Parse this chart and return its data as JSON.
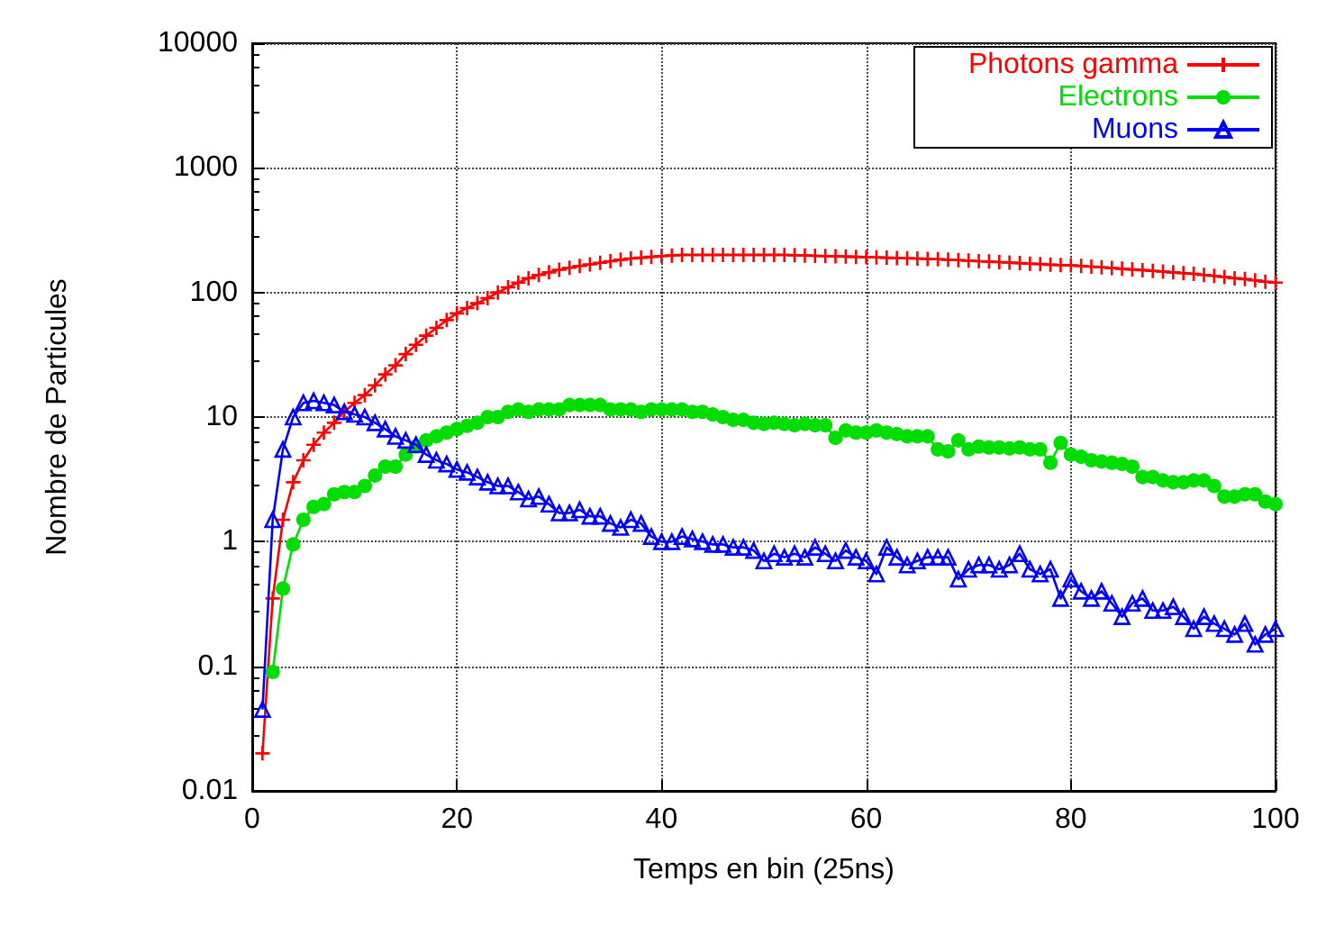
{
  "chart_data": {
    "type": "line",
    "xlabel": "Temps en bin (25ns)",
    "ylabel": "Nombre de Particules",
    "x": [
      1,
      2,
      3,
      4,
      5,
      6,
      7,
      8,
      9,
      10,
      11,
      12,
      13,
      14,
      15,
      16,
      17,
      18,
      19,
      20,
      21,
      22,
      23,
      24,
      25,
      26,
      27,
      28,
      29,
      30,
      31,
      32,
      33,
      34,
      35,
      36,
      37,
      38,
      39,
      40,
      41,
      42,
      43,
      44,
      45,
      46,
      47,
      48,
      49,
      50,
      51,
      52,
      53,
      54,
      55,
      56,
      57,
      58,
      59,
      60,
      61,
      62,
      63,
      64,
      65,
      66,
      67,
      68,
      69,
      70,
      71,
      72,
      73,
      74,
      75,
      76,
      77,
      78,
      79,
      80,
      81,
      82,
      83,
      84,
      85,
      86,
      87,
      88,
      89,
      90,
      91,
      92,
      93,
      94,
      95,
      96,
      97,
      98,
      99,
      100
    ],
    "series": [
      {
        "name": "Photons gamma",
        "color": "#ff0000",
        "marker": "cross",
        "values": [
          0.02,
          0.35,
          1.5,
          3,
          4.5,
          6,
          7.5,
          9,
          11,
          13,
          15,
          18,
          22,
          26,
          32,
          38,
          45,
          52,
          60,
          68,
          75,
          82,
          90,
          100,
          110,
          120,
          130,
          138,
          145,
          152,
          158,
          163,
          168,
          173,
          178,
          183,
          187,
          190,
          193,
          196,
          198,
          200,
          200,
          200,
          200,
          200,
          200,
          200,
          200,
          200,
          200,
          200,
          199,
          198,
          197,
          196,
          195,
          194,
          193,
          192,
          191,
          190,
          189,
          188,
          187,
          186,
          185,
          183,
          182,
          180,
          178,
          177,
          175,
          174,
          172,
          170,
          169,
          167,
          166,
          165,
          163,
          161,
          159,
          157,
          155,
          153,
          151,
          149,
          147,
          145,
          143,
          141,
          138,
          136,
          133,
          130,
          128,
          125,
          122,
          120
        ]
      },
      {
        "name": "Electrons",
        "color": "#00dd00",
        "marker": "circle",
        "values": [
          null,
          0.09,
          0.42,
          0.95,
          1.5,
          1.9,
          2.0,
          2.4,
          2.5,
          2.5,
          2.8,
          3.4,
          4,
          4,
          5,
          5.8,
          6.5,
          7,
          7.5,
          8,
          8.5,
          9,
          10,
          10,
          11,
          11.5,
          11,
          11.5,
          11.5,
          11.5,
          12.5,
          12.5,
          12.5,
          12.5,
          11.5,
          11.5,
          11.5,
          11,
          11.5,
          11.5,
          11.5,
          11.5,
          11,
          11,
          10.5,
          10,
          9.5,
          9.5,
          9,
          8.8,
          9,
          8.8,
          8.6,
          8.8,
          8.6,
          8.6,
          6.8,
          7.8,
          7.5,
          7.5,
          7.8,
          7.5,
          7.3,
          7,
          7,
          7,
          5.5,
          5.3,
          6.5,
          5.5,
          5.8,
          5.7,
          5.7,
          5.6,
          5.7,
          5.5,
          5.5,
          4.3,
          6.2,
          5.0,
          4.8,
          4.5,
          4.4,
          4.3,
          4.2,
          4.0,
          3.3,
          3.3,
          3.1,
          3.0,
          3.0,
          3.1,
          3.1,
          2.8,
          2.3,
          2.3,
          2.4,
          2.4,
          2.1,
          2.0
        ]
      },
      {
        "name": "Muons",
        "color": "#0000ff",
        "marker": "triangle",
        "values": [
          0.045,
          1.5,
          5.5,
          10,
          13,
          13.5,
          13,
          12.5,
          11,
          10.5,
          10,
          9,
          8,
          7,
          6.5,
          6,
          5,
          4.5,
          4.2,
          3.8,
          3.6,
          3.3,
          3,
          2.8,
          2.8,
          2.5,
          2.2,
          2.3,
          2,
          1.7,
          1.7,
          1.8,
          1.6,
          1.6,
          1.4,
          1.3,
          1.5,
          1.4,
          1.1,
          1.0,
          1.0,
          1.1,
          1.05,
          1.0,
          0.95,
          0.95,
          0.9,
          0.9,
          0.85,
          0.7,
          0.8,
          0.75,
          0.8,
          0.75,
          0.9,
          0.8,
          0.7,
          0.85,
          0.75,
          0.7,
          0.55,
          0.9,
          0.75,
          0.65,
          0.7,
          0.75,
          0.75,
          0.75,
          0.5,
          0.6,
          0.65,
          0.65,
          0.6,
          0.65,
          0.8,
          0.6,
          0.55,
          0.6,
          0.35,
          0.5,
          0.4,
          0.35,
          0.4,
          0.32,
          0.25,
          0.32,
          0.35,
          0.28,
          0.28,
          0.3,
          0.25,
          0.2,
          0.25,
          0.22,
          0.2,
          0.18,
          0.22,
          0.15,
          0.18,
          0.2
        ]
      }
    ],
    "xlim": [
      0,
      100
    ],
    "xticks": [
      0,
      20,
      40,
      60,
      80,
      100
    ],
    "ylim": [
      0.01,
      10000
    ],
    "yticks": [
      0.01,
      0.1,
      1,
      10,
      100,
      1000,
      10000
    ],
    "log": "y",
    "grid": true,
    "legend": "top right",
    "line_style": "solid"
  }
}
